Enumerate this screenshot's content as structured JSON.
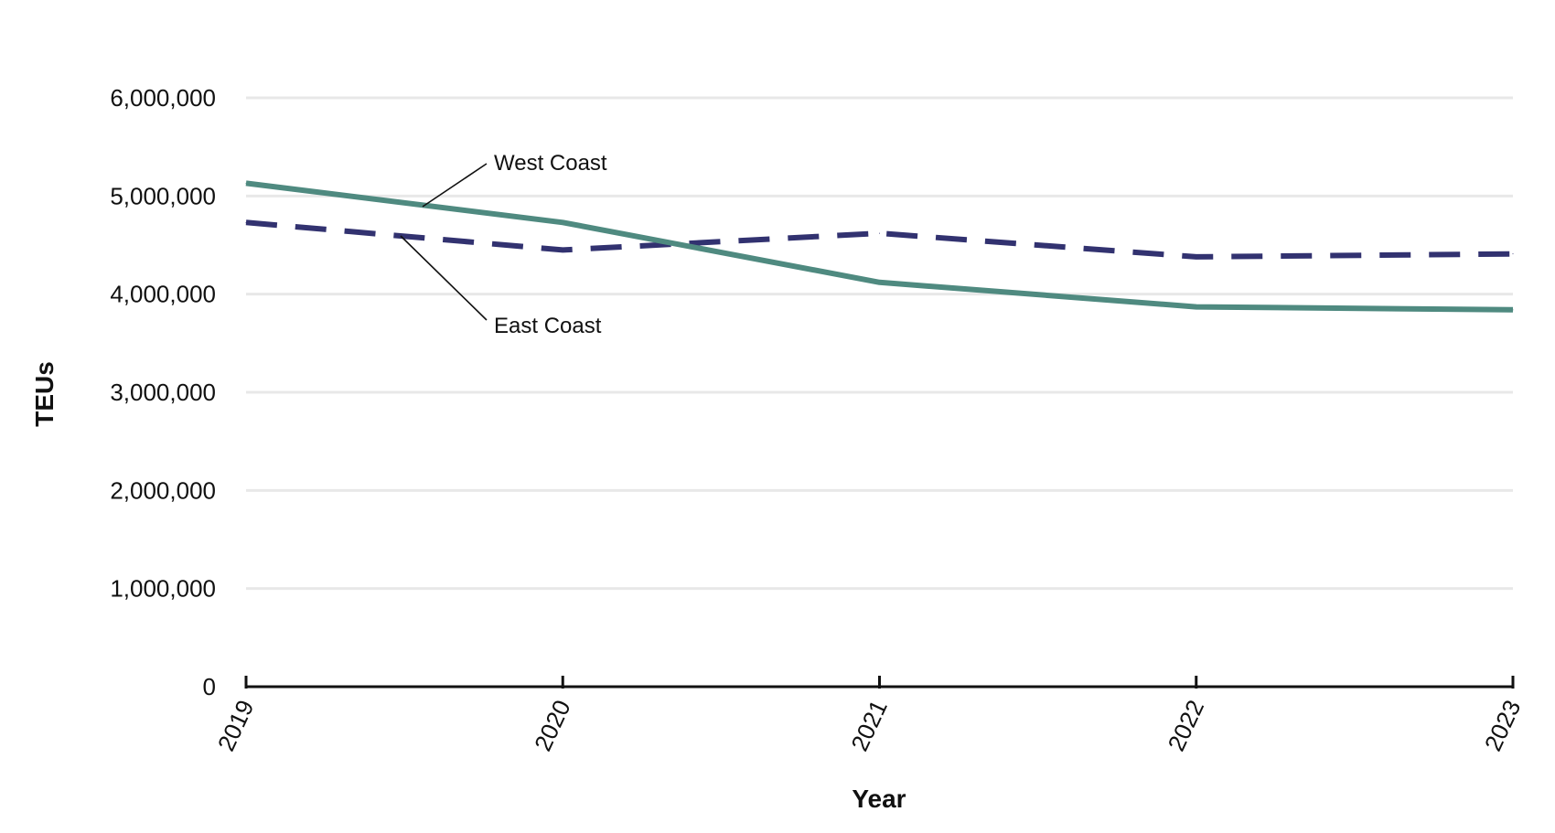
{
  "chart_data": {
    "type": "line",
    "title": "",
    "xlabel": "Year",
    "ylabel": "TEUs",
    "categories": [
      "2019",
      "2020",
      "2021",
      "2022",
      "2023"
    ],
    "ylim": [
      0,
      6000000
    ],
    "yticks": [
      0,
      1000000,
      2000000,
      3000000,
      4000000,
      5000000,
      6000000
    ],
    "ytick_labels": [
      "0",
      "1,000,000",
      "2,000,000",
      "3,000,000",
      "4,000,000",
      "5,000,000",
      "6,000,000"
    ],
    "grid": true,
    "series": [
      {
        "name": "West Coast",
        "values": [
          5130000,
          4730000,
          4120000,
          3870000,
          3840000
        ],
        "color": "#4f8a80",
        "style": "solid"
      },
      {
        "name": "East Coast",
        "values": [
          4730000,
          4450000,
          4620000,
          4380000,
          4410000
        ],
        "color": "#323270",
        "style": "dashed"
      }
    ]
  }
}
